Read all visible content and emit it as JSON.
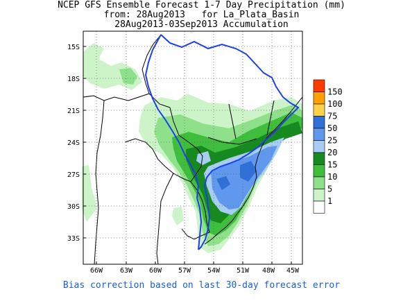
{
  "title": {
    "line1": "NCEP GFS Ensemble Forecast 1-7 Day Precipitation (mm)",
    "line2": "from: 28Aug2013   for La_Plata_Basin",
    "line3": "28Aug2013-03Sep2013 Accumulation"
  },
  "footer": "Bias correction based on last 30-day forecast error",
  "axes": {
    "lon_ticks": [
      "66W",
      "63W",
      "60W",
      "57W",
      "54W",
      "51W",
      "48W",
      "45W"
    ],
    "lat_ticks": [
      "15S",
      "18S",
      "21S",
      "24S",
      "27S",
      "30S",
      "33S"
    ]
  },
  "legend": {
    "levels": [
      {
        "label": "150",
        "color": "#ff3c00"
      },
      {
        "label": "100",
        "color": "#ffa000"
      },
      {
        "label": "75",
        "color": "#ffd24a"
      },
      {
        "label": "50",
        "color": "#2f6fd6"
      },
      {
        "label": "25",
        "color": "#5f98ec"
      },
      {
        "label": "20",
        "color": "#a8cdf2"
      },
      {
        "label": "15",
        "color": "#178a1f"
      },
      {
        "label": "10",
        "color": "#3fbd3c"
      },
      {
        "label": "5",
        "color": "#8ee08a"
      },
      {
        "label": "1",
        "color": "#cdf3c8"
      },
      {
        "label": "",
        "color": "#ffffff"
      }
    ]
  },
  "colors": {
    "basin_boundary": "#1a3ff0",
    "political_borders": "#000000",
    "grid": "#666666"
  }
}
